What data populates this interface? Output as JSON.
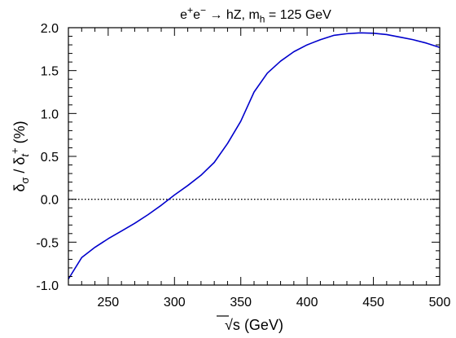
{
  "chart_data": {
    "type": "line",
    "title": {
      "parts": [
        {
          "text": "e"
        },
        {
          "text": "+",
          "sup": true
        },
        {
          "text": "e"
        },
        {
          "text": "−",
          "sup": true
        },
        {
          "text": " → hZ,  m"
        },
        {
          "text": "h",
          "sub": true
        },
        {
          "text": " = 125 GeV"
        }
      ]
    },
    "xlabel": {
      "parts": [
        {
          "text": "√s"
        },
        {
          "text": "  (GeV)"
        }
      ]
    },
    "ylabel": {
      "parts": [
        {
          "text": "δ"
        },
        {
          "text": "σ",
          "sub": true
        },
        {
          "text": " / δ"
        },
        {
          "text": "t",
          "sub": true,
          "italic": true
        },
        {
          "text": "+",
          "sup": true
        },
        {
          "text": "  (%)"
        }
      ]
    },
    "xlim": [
      220,
      500
    ],
    "ylim": [
      -1.0,
      2.0
    ],
    "xticks": [
      250,
      300,
      350,
      400,
      450,
      500
    ],
    "xtick_labels": [
      "250",
      "300",
      "350",
      "400",
      "450",
      "500"
    ],
    "yticks": [
      -1.0,
      -0.5,
      0.0,
      0.5,
      1.0,
      1.5,
      2.0
    ],
    "ytick_labels": [
      "-1.0",
      "-0.5",
      "0.0",
      "0.5",
      "1.0",
      "1.5",
      "2.0"
    ],
    "reference_line": {
      "y": 0.0,
      "style": "dotted",
      "color": "#000000"
    },
    "grid": false,
    "series": [
      {
        "color": "#0000cc",
        "x": [
          220,
          230,
          240,
          250,
          260,
          270,
          280,
          290,
          300,
          310,
          320,
          330,
          340,
          350,
          360,
          370,
          380,
          390,
          400,
          410,
          420,
          430,
          440,
          450,
          460,
          470,
          480,
          490,
          500
        ],
        "y": [
          -0.93,
          -0.68,
          -0.56,
          -0.46,
          -0.37,
          -0.28,
          -0.18,
          -0.07,
          0.05,
          0.16,
          0.28,
          0.43,
          0.65,
          0.91,
          1.25,
          1.47,
          1.61,
          1.72,
          1.8,
          1.86,
          1.91,
          1.93,
          1.94,
          1.935,
          1.92,
          1.89,
          1.86,
          1.82,
          1.77
        ]
      }
    ]
  }
}
